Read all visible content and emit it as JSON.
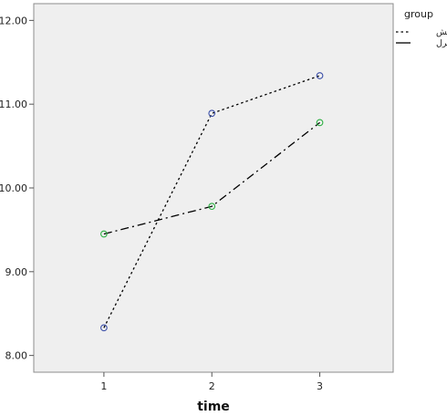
{
  "chart_data": {
    "type": "line",
    "title": "",
    "xlabel": "time",
    "ylabel": "",
    "categories": [
      "1",
      "2",
      "3"
    ],
    "x": [
      1,
      2,
      3
    ],
    "xlim": [
      0.35,
      3.68
    ],
    "ylim": [
      7.8,
      12.2
    ],
    "yticks": [
      8.0,
      9.0,
      10.0,
      11.0,
      12.0
    ],
    "ytick_labels": [
      "8.00",
      "9.00",
      "10.00",
      "11.00",
      "12.00"
    ],
    "grid": false,
    "legend_position": "right",
    "legend_title": "group",
    "series": [
      {
        "name": "آزمایش",
        "values": [
          8.33,
          10.89,
          11.34
        ],
        "line_style": "dotted",
        "marker": "circle",
        "marker_color": "#3b4fa8"
      },
      {
        "name": "کنترل",
        "values": [
          9.45,
          9.78,
          10.78
        ],
        "line_style": "dash-dot",
        "marker": "circle",
        "marker_color": "#2db043"
      }
    ],
    "colors": {
      "plot_background": "#efefef",
      "line": "#000000"
    }
  }
}
